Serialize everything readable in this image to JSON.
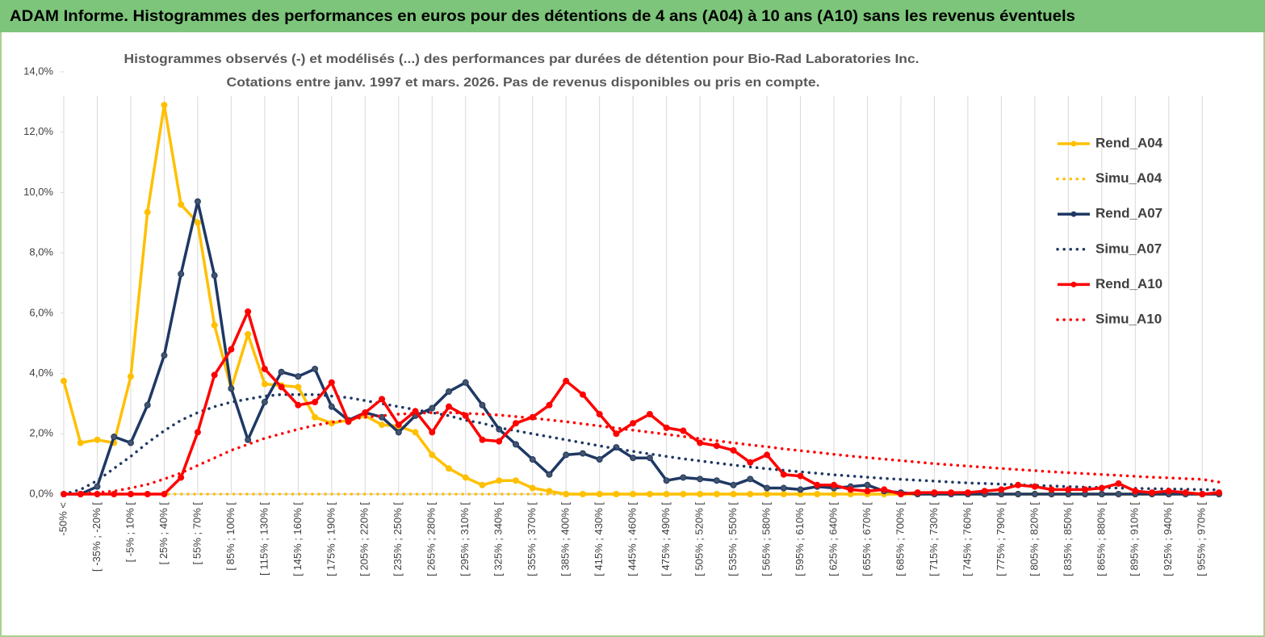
{
  "banner": "ADAM Informe. Histogrammes des performances en euros pour des détentions de 4 ans (A04) à 10 ans (A10) sans les revenus éventuels",
  "chart_data": {
    "type": "line",
    "title": "Histogrammes observés (-) et modélisés (...) des performances par durées de détention pour Bio-Rad  Laboratories Inc.",
    "subtitle": "Cotations entre janv. 1997 et mars. 2026.  Pas de revenus disponibles ou pris en compte.",
    "categories": [
      "-50% <",
      null,
      "[ -35% ; -20% [",
      null,
      "[ -5% ; 10% [",
      null,
      "[ 25% ; 40% [",
      null,
      "[ 55% ; 70% [",
      null,
      "[ 85% ; 100% [",
      null,
      "[ 115% ; 130% [",
      null,
      "[ 145% ; 160% [",
      null,
      "[ 175% ; 190% [",
      null,
      "[ 205% ; 220% [",
      null,
      "[ 235% ; 250% [",
      null,
      "[ 265% ; 280% [",
      null,
      "[ 295% ; 310% [",
      null,
      "[ 325% ; 340% [",
      null,
      "[ 355% ; 370% [",
      null,
      "[ 385% ; 400% [",
      null,
      "[ 415% ; 430% [",
      null,
      "[ 445% ; 460% [",
      null,
      "[ 475% ; 490% [",
      null,
      "[ 505% ; 520% [",
      null,
      "[ 535% ; 550% [",
      null,
      "[ 565% ; 580% [",
      null,
      "[ 595% ; 610% [",
      null,
      "[ 625% ; 640% [",
      null,
      "[ 655% ; 670% [",
      null,
      "[ 685% ; 700% [",
      null,
      "[ 715% ; 730% [",
      null,
      "[ 745% ; 760% [",
      null,
      "[ 775% ; 790% [",
      null,
      "[ 805% ; 820% [",
      null,
      "[ 835% ; 850% [",
      null,
      "[ 865% ; 880% [",
      null,
      "[ 895% ; 910% [",
      null,
      "[ 925% ; 940% [",
      null,
      "[ 955% ; 970% [",
      null
    ],
    "series": [
      {
        "name": "Rend_A04",
        "color": "#ffc000",
        "markers": true,
        "dotted": false,
        "values": [
          3.75,
          1.7,
          1.8,
          1.7,
          3.9,
          9.35,
          12.9,
          9.6,
          9.0,
          5.6,
          3.5,
          5.3,
          3.65,
          3.6,
          3.55,
          2.55,
          2.35,
          2.45,
          2.6,
          2.3,
          2.25,
          2.05,
          1.3,
          0.85,
          0.55,
          0.3,
          0.45,
          0.45,
          0.2,
          0.1,
          0,
          0,
          0,
          0,
          0,
          0,
          0,
          0,
          0,
          0,
          0,
          0,
          0,
          0,
          0,
          0,
          0,
          0,
          0,
          0,
          0,
          0,
          0,
          0,
          0,
          0,
          0,
          0,
          0,
          0,
          0,
          0,
          0,
          0,
          0,
          0,
          0,
          0,
          0,
          0
        ]
      },
      {
        "name": "Simu_A04",
        "color": "#ffc000",
        "markers": false,
        "dotted": true,
        "values": [
          0,
          0,
          0,
          0,
          0,
          0,
          0,
          0,
          0,
          0,
          0,
          0,
          0,
          0,
          0,
          0,
          0,
          0,
          0,
          0,
          0,
          0,
          0,
          0,
          0,
          0,
          0,
          0,
          0,
          0,
          0,
          0,
          0,
          0,
          0,
          0,
          0,
          0,
          0,
          0,
          0,
          0,
          0,
          0,
          0,
          0,
          0,
          0,
          0,
          0,
          0,
          0,
          0,
          0,
          0,
          0,
          0,
          0,
          0,
          0,
          0,
          0,
          0,
          0,
          0,
          0,
          0,
          0,
          0,
          0
        ]
      },
      {
        "name": "Rend_A07",
        "color": "#1f3864",
        "markers": true,
        "dotted": false,
        "values": [
          0,
          0,
          0.25,
          1.9,
          1.7,
          2.95,
          4.6,
          7.3,
          9.7,
          7.25,
          3.5,
          1.8,
          3.05,
          4.05,
          3.9,
          4.15,
          2.9,
          2.45,
          2.7,
          2.55,
          2.05,
          2.6,
          2.85,
          3.4,
          3.7,
          2.95,
          2.15,
          1.65,
          1.15,
          0.65,
          1.3,
          1.35,
          1.15,
          1.55,
          1.2,
          1.2,
          0.45,
          0.55,
          0.5,
          0.45,
          0.3,
          0.5,
          0.2,
          0.2,
          0.15,
          0.25,
          0.2,
          0.25,
          0.3,
          0.1,
          0.05,
          0,
          0,
          0,
          0,
          0,
          0,
          0,
          0,
          0,
          0,
          0,
          0,
          0,
          0,
          0,
          0,
          0,
          0,
          0
        ]
      },
      {
        "name": "Simu_A07",
        "color": "#1f3864",
        "markers": false,
        "dotted": true,
        "values": [
          0,
          0.15,
          0.45,
          0.85,
          1.25,
          1.7,
          2.1,
          2.45,
          2.7,
          2.9,
          3.05,
          3.15,
          3.25,
          3.3,
          3.3,
          3.3,
          3.25,
          3.2,
          3.1,
          3.0,
          2.9,
          2.8,
          2.7,
          2.6,
          2.45,
          2.35,
          2.2,
          2.1,
          2.0,
          1.9,
          1.8,
          1.7,
          1.6,
          1.5,
          1.42,
          1.33,
          1.25,
          1.17,
          1.1,
          1.03,
          0.96,
          0.9,
          0.84,
          0.79,
          0.74,
          0.69,
          0.64,
          0.6,
          0.56,
          0.52,
          0.49,
          0.46,
          0.43,
          0.4,
          0.37,
          0.35,
          0.33,
          0.31,
          0.29,
          0.27,
          0.25,
          0.23,
          0.22,
          0.2,
          0.19,
          0.18,
          0.17,
          0.16,
          0.15,
          0.14
        ]
      },
      {
        "name": "Rend_A10",
        "color": "#ff0000",
        "markers": true,
        "dotted": false,
        "values": [
          0,
          0,
          0,
          0,
          0,
          0,
          0,
          0.55,
          2.05,
          3.95,
          4.8,
          6.05,
          4.15,
          3.55,
          2.95,
          3.05,
          3.7,
          2.4,
          2.7,
          3.15,
          2.3,
          2.75,
          2.05,
          2.9,
          2.6,
          1.8,
          1.75,
          2.35,
          2.55,
          2.95,
          3.75,
          3.3,
          2.65,
          2.0,
          2.35,
          2.65,
          2.2,
          2.1,
          1.7,
          1.6,
          1.45,
          1.05,
          1.3,
          0.65,
          0.6,
          0.3,
          0.3,
          0.15,
          0.1,
          0.15,
          0,
          0.05,
          0.05,
          0.05,
          0.05,
          0.1,
          0.15,
          0.3,
          0.25,
          0.15,
          0.15,
          0.15,
          0.2,
          0.35,
          0.1,
          0.05,
          0.1,
          0.05,
          0,
          0.05
        ]
      },
      {
        "name": "Simu_A10",
        "color": "#ff0000",
        "markers": false,
        "dotted": true,
        "values": [
          0,
          0.02,
          0.05,
          0.1,
          0.2,
          0.32,
          0.5,
          0.7,
          0.95,
          1.2,
          1.45,
          1.65,
          1.85,
          2.0,
          2.15,
          2.28,
          2.38,
          2.47,
          2.55,
          2.6,
          2.65,
          2.68,
          2.7,
          2.7,
          2.68,
          2.65,
          2.62,
          2.57,
          2.52,
          2.46,
          2.4,
          2.33,
          2.26,
          2.19,
          2.12,
          2.05,
          1.98,
          1.91,
          1.84,
          1.77,
          1.7,
          1.63,
          1.57,
          1.5,
          1.44,
          1.38,
          1.32,
          1.26,
          1.21,
          1.16,
          1.11,
          1.06,
          1.01,
          0.97,
          0.93,
          0.89,
          0.85,
          0.81,
          0.78,
          0.74,
          0.71,
          0.68,
          0.65,
          0.62,
          0.59,
          0.56,
          0.54,
          0.51,
          0.49,
          0.4
        ]
      }
    ],
    "ylim": [
      0,
      14
    ],
    "yticks": [
      {
        "value": 0,
        "label": "0,0%"
      },
      {
        "value": 2,
        "label": "2,0%"
      },
      {
        "value": 4,
        "label": "4,0%"
      },
      {
        "value": 6,
        "label": "6,0%"
      },
      {
        "value": 8,
        "label": "8,0%"
      },
      {
        "value": 10,
        "label": "10,0%"
      },
      {
        "value": 12,
        "label": "12,0%"
      },
      {
        "value": 14,
        "label": "14,0%"
      }
    ],
    "grid": true,
    "legend": "right"
  }
}
